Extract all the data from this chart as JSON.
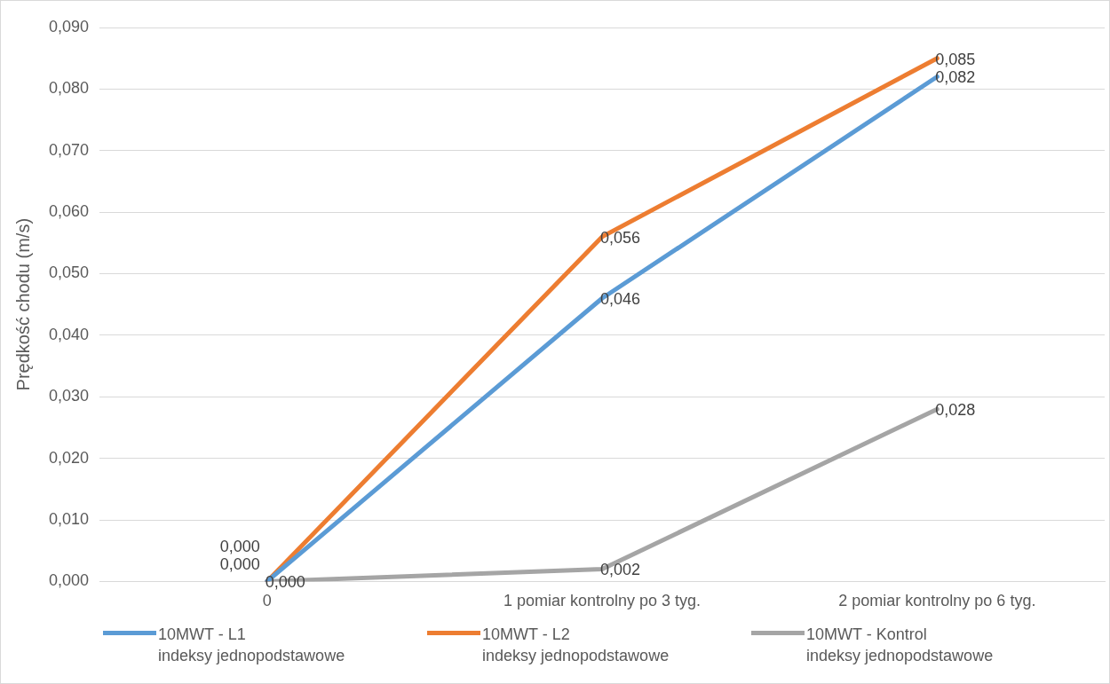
{
  "chart_data": {
    "type": "line",
    "ylabel": "Prędkość chodu (m/s)",
    "categories": [
      "0",
      "1 pomiar kontrolny po 3 tyg.",
      "2 pomiar kontrolny po 6 tyg."
    ],
    "series": [
      {
        "name": "10MWT - L1\nindeksy jednopodstawowe",
        "color": "#5b9bd5",
        "values": [
          0,
          0.046,
          0.082
        ],
        "value_labels": [
          "0,000",
          "0,046",
          "0,082"
        ]
      },
      {
        "name": "10MWT - L2\nindeksy jednopodstawowe",
        "color": "#ed7d31",
        "values": [
          0,
          0.056,
          0.085
        ],
        "value_labels": [
          "0,000",
          "0,056",
          "0,085"
        ]
      },
      {
        "name": "10MWT - Kontrol\nindeksy jednopodstawowe",
        "color": "#a5a5a5",
        "values": [
          0,
          0.002,
          0.028
        ],
        "value_labels": [
          "0,000",
          "0,002",
          "0,028"
        ]
      }
    ],
    "ylim": [
      0,
      0.09
    ],
    "yticks": [
      {
        "value": 0,
        "label": "0,000"
      },
      {
        "value": 0.01,
        "label": "0,010"
      },
      {
        "value": 0.02,
        "label": "0,020"
      },
      {
        "value": 0.03,
        "label": "0,030"
      },
      {
        "value": 0.04,
        "label": "0,040"
      },
      {
        "value": 0.05,
        "label": "0,050"
      },
      {
        "value": 0.06,
        "label": "0,060"
      },
      {
        "value": 0.07,
        "label": "0,070"
      },
      {
        "value": 0.08,
        "label": "0,080"
      },
      {
        "value": 0.09,
        "label": "0,090"
      }
    ],
    "grid": "y",
    "legend": "bottom",
    "marker": "none",
    "line_style": "solid"
  }
}
